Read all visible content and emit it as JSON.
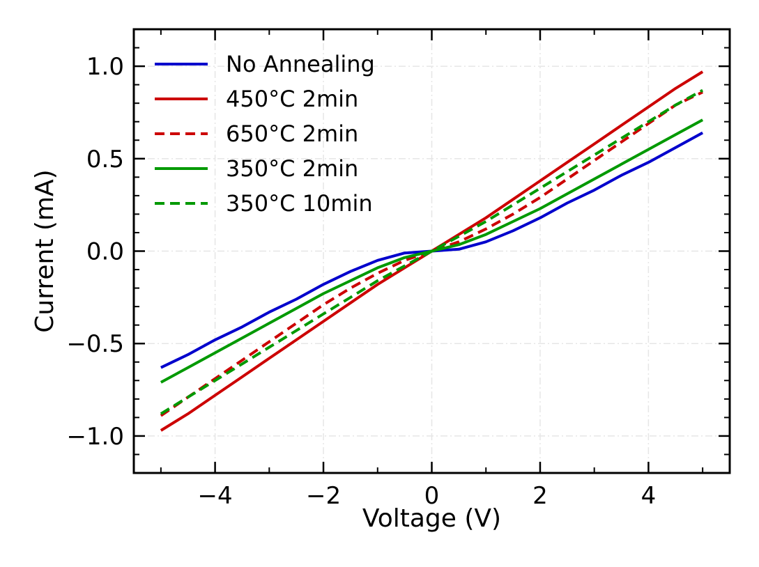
{
  "chart_data": {
    "type": "line",
    "title": "",
    "xlabel": "Voltage (V)",
    "ylabel": "Current (mA)",
    "xlim": [
      -5.5,
      5.5
    ],
    "ylim": [
      -1.2,
      1.2
    ],
    "xticks": [
      -4,
      -2,
      0,
      2,
      4
    ],
    "xtick_labels": [
      "−4",
      "−2",
      "0",
      "2",
      "4"
    ],
    "yticks": [
      -1.0,
      -0.5,
      0.0,
      0.5,
      1.0
    ],
    "ytick_labels": [
      "−1.0",
      "−0.5",
      "0.0",
      "0.5",
      "1.0"
    ],
    "grid": true,
    "legend_position": "top-left",
    "x": [
      -5,
      -4.5,
      -4,
      -3.5,
      -3,
      -2.5,
      -2,
      -1.5,
      -1,
      -0.5,
      0,
      0.5,
      1,
      1.5,
      2,
      2.5,
      3,
      3.5,
      4,
      4.5,
      5
    ],
    "series": [
      {
        "name": "No Annealing",
        "color": "#0000cc",
        "dash": "solid",
        "values": [
          -0.63,
          -0.56,
          -0.48,
          -0.41,
          -0.33,
          -0.26,
          -0.18,
          -0.11,
          -0.05,
          -0.01,
          0.0,
          0.01,
          0.05,
          0.11,
          0.18,
          0.26,
          0.33,
          0.41,
          0.48,
          0.56,
          0.64
        ]
      },
      {
        "name": "450°C 2min",
        "color": "#cc0000",
        "dash": "solid",
        "values": [
          -0.97,
          -0.88,
          -0.78,
          -0.68,
          -0.58,
          -0.48,
          -0.38,
          -0.28,
          -0.18,
          -0.09,
          0.0,
          0.09,
          0.18,
          0.28,
          0.38,
          0.48,
          0.58,
          0.68,
          0.78,
          0.88,
          0.97
        ]
      },
      {
        "name": "650°C 2min",
        "color": "#cc0000",
        "dash": "dashed",
        "values": [
          -0.89,
          -0.79,
          -0.69,
          -0.59,
          -0.49,
          -0.39,
          -0.29,
          -0.2,
          -0.12,
          -0.05,
          0.0,
          0.05,
          0.12,
          0.2,
          0.29,
          0.39,
          0.49,
          0.59,
          0.69,
          0.79,
          0.86
        ]
      },
      {
        "name": "350°C 2min",
        "color": "#009900",
        "dash": "solid",
        "values": [
          -0.71,
          -0.63,
          -0.55,
          -0.47,
          -0.39,
          -0.31,
          -0.23,
          -0.16,
          -0.09,
          -0.035,
          0.0,
          0.035,
          0.09,
          0.16,
          0.23,
          0.31,
          0.39,
          0.47,
          0.55,
          0.63,
          0.71
        ]
      },
      {
        "name": "350°C 10min",
        "color": "#009900",
        "dash": "dashed",
        "values": [
          -0.88,
          -0.79,
          -0.7,
          -0.61,
          -0.52,
          -0.43,
          -0.34,
          -0.25,
          -0.16,
          -0.08,
          0.0,
          0.08,
          0.16,
          0.25,
          0.34,
          0.43,
          0.52,
          0.61,
          0.7,
          0.79,
          0.87
        ]
      }
    ]
  }
}
